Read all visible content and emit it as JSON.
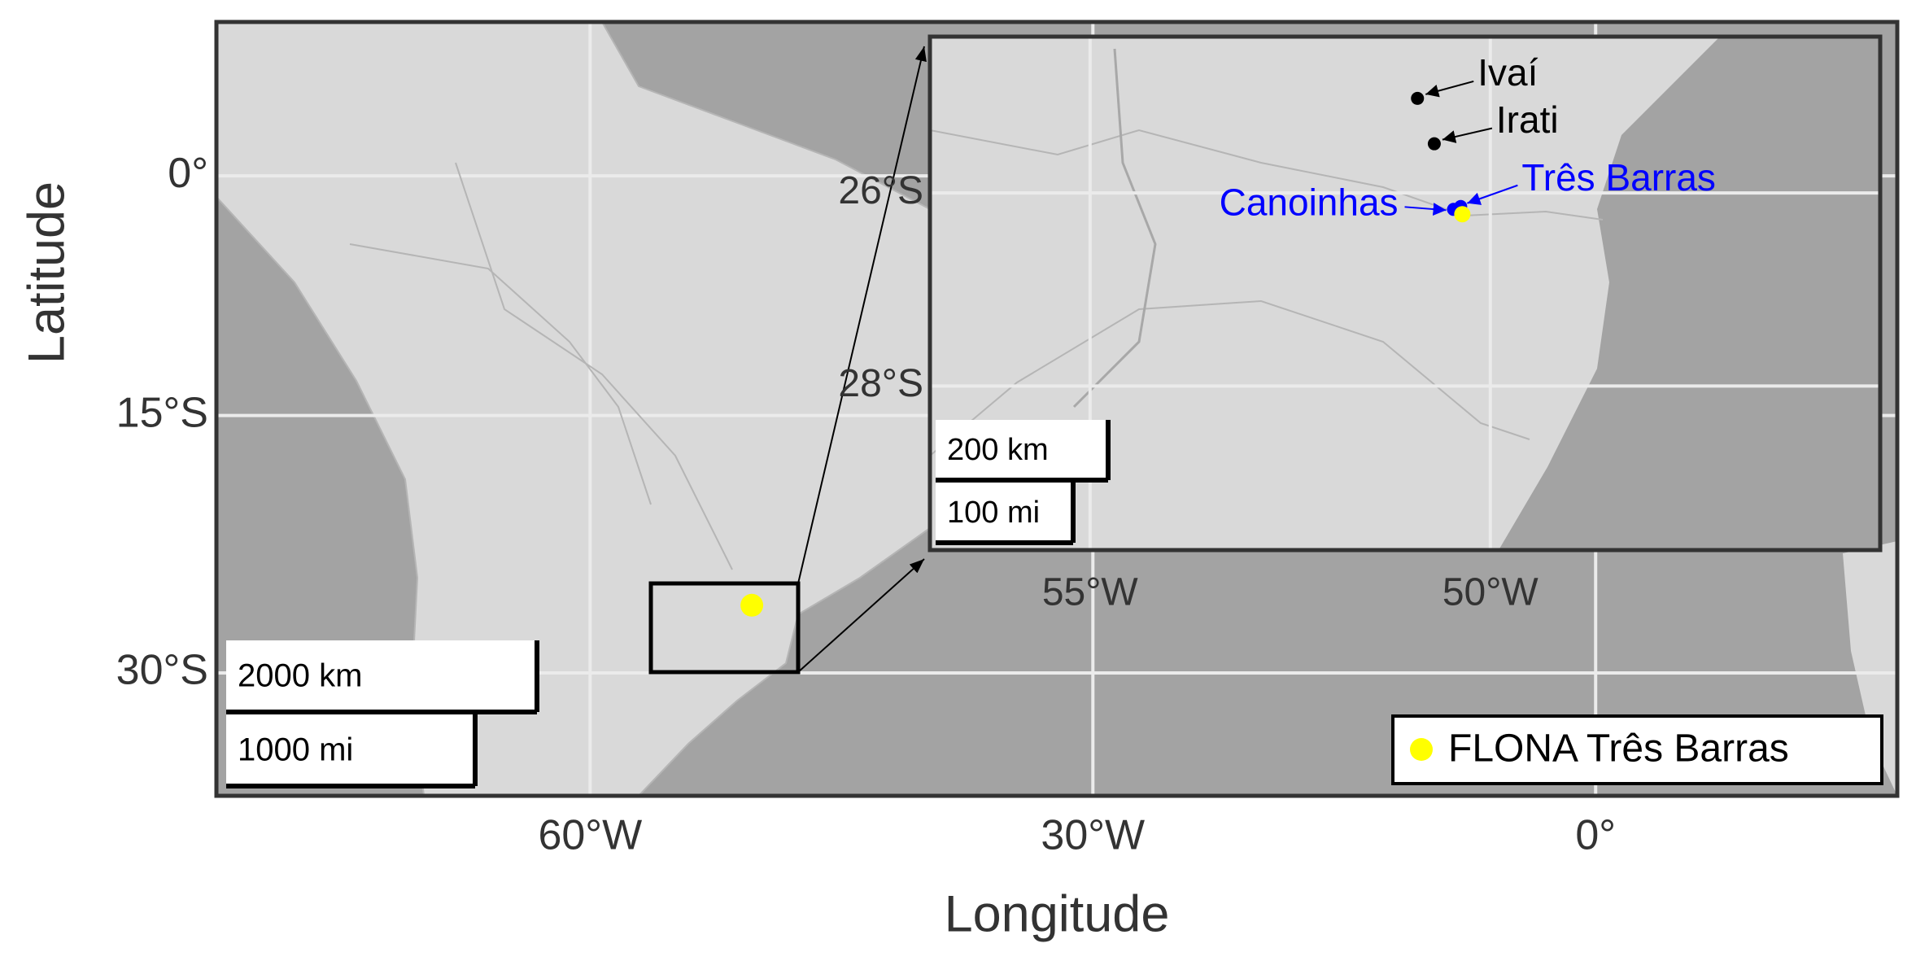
{
  "map": {
    "xlabel": "Longitude",
    "ylabel": "Latitude",
    "xlim": [
      -82.3,
      18
    ],
    "ylim": [
      -36.5,
      9.7
    ],
    "xticks": [
      {
        "value": -60,
        "label": "60°W"
      },
      {
        "value": -30,
        "label": "30°W"
      },
      {
        "value": 0,
        "label": "0°"
      }
    ],
    "yticks": [
      {
        "value": 0,
        "label": "0°"
      },
      {
        "value": -15,
        "label": "15°S"
      },
      {
        "value": -30,
        "label": "30°S"
      }
    ],
    "grid": true,
    "scale_bars": [
      "2000 km",
      "1000 mi"
    ],
    "points": [
      {
        "name": "FLONA Três Barras",
        "lon": -50.35,
        "lat": -26.22,
        "color": "#ffff00"
      }
    ],
    "legend": "bottom-right"
  },
  "inset": {
    "xlim": [
      -57,
      -45.13
    ],
    "ylim": [
      -29.7,
      -24.38
    ],
    "xticks": [
      {
        "value": -55,
        "label": "55°W"
      },
      {
        "value": -50,
        "label": "50°W"
      }
    ],
    "yticks": [
      {
        "value": -26,
        "label": "26°S"
      },
      {
        "value": -28,
        "label": "28°S"
      }
    ],
    "grid": true,
    "scale_bars": [
      "200 km",
      "100 mi"
    ],
    "places": [
      {
        "name": "Ivaí",
        "lon": -50.91,
        "lat": -25.02,
        "color": "#000000"
      },
      {
        "name": "Irati",
        "lon": -50.7,
        "lat": -25.49,
        "color": "#000000"
      },
      {
        "name": "Três Barras",
        "lon": -50.37,
        "lat": -26.14,
        "color": "#0000ff"
      },
      {
        "name": "Canoinhas",
        "lon": -50.46,
        "lat": -26.17,
        "color": "#0000ff"
      }
    ]
  }
}
